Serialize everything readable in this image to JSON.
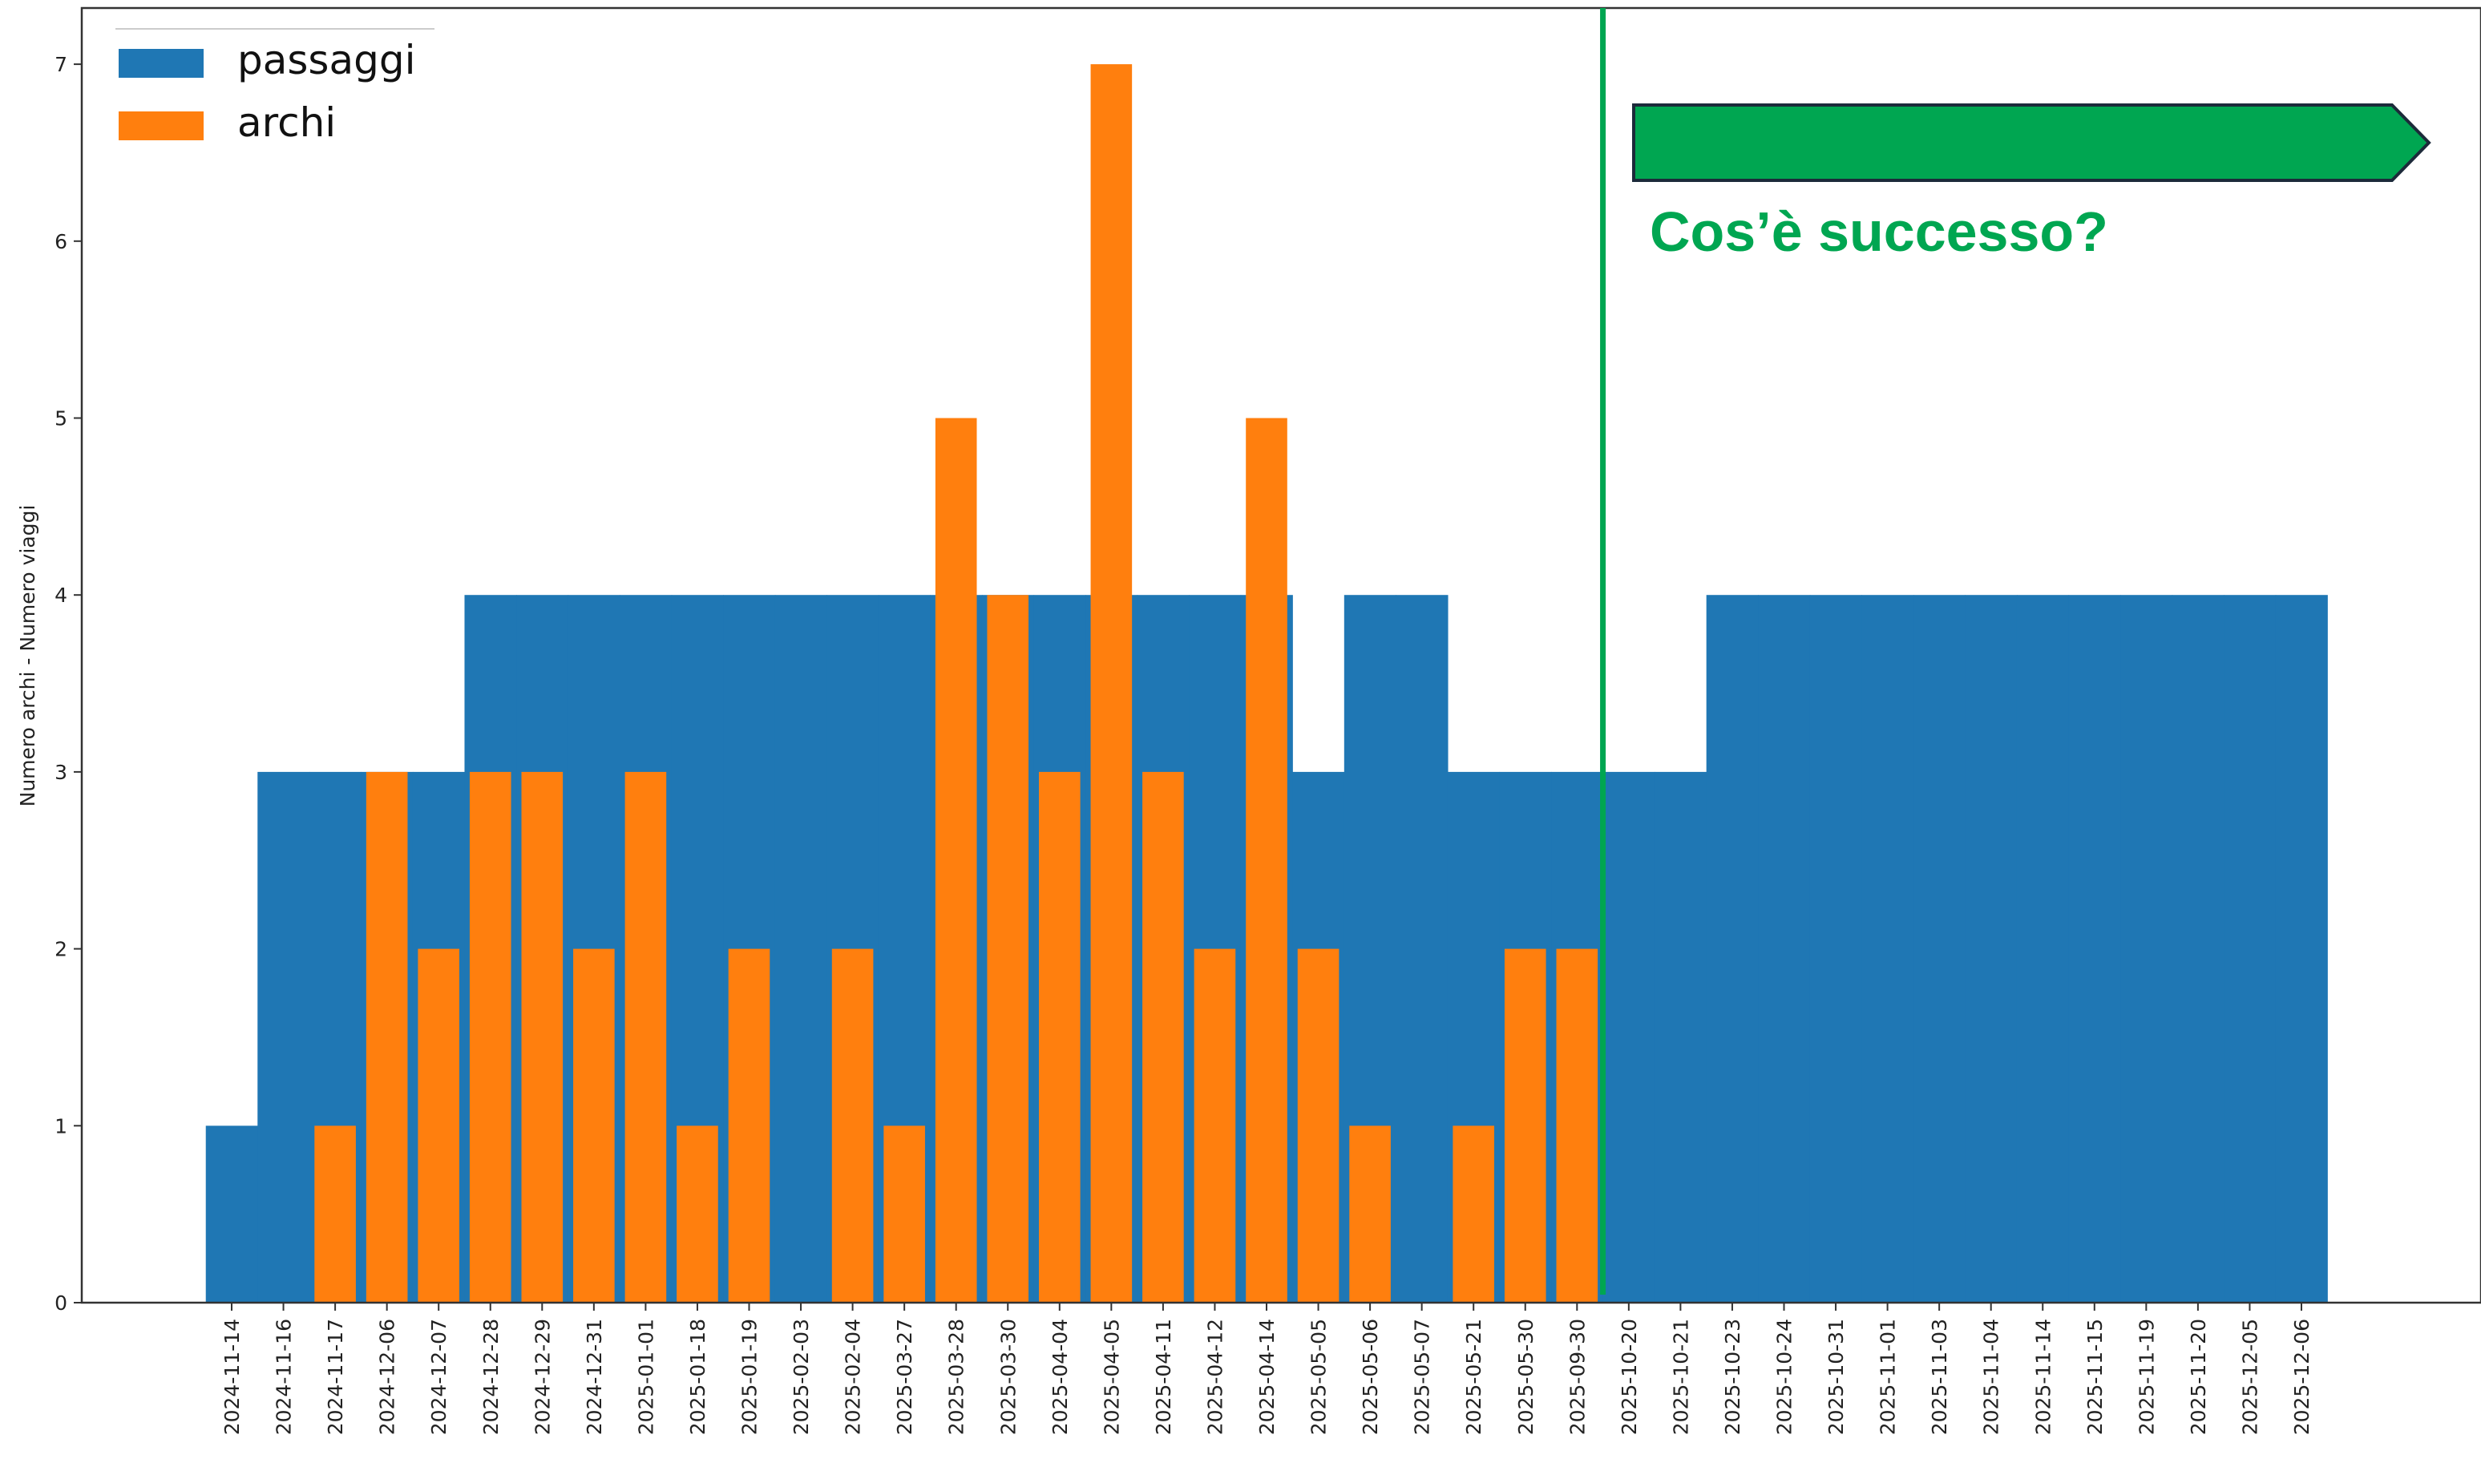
{
  "chart_data": {
    "type": "bar",
    "ylabel": "Numero archi - Numero viaggi",
    "xlabel": "",
    "ylim": [
      0,
      7.35
    ],
    "yticks": [
      0,
      1,
      2,
      3,
      4,
      5,
      6,
      7
    ],
    "grid": false,
    "legend_position": "top-left",
    "categories": [
      "2024-11-14",
      "2024-11-16",
      "2024-11-17",
      "2024-12-06",
      "2024-12-07",
      "2024-12-28",
      "2024-12-29",
      "2024-12-31",
      "2025-01-01",
      "2025-01-18",
      "2025-01-19",
      "2025-02-03",
      "2025-02-04",
      "2025-03-27",
      "2025-03-28",
      "2025-03-30",
      "2025-04-04",
      "2025-04-05",
      "2025-04-11",
      "2025-04-12",
      "2025-04-14",
      "2025-05-05",
      "2025-05-06",
      "2025-05-07",
      "2025-05-21",
      "2025-05-30",
      "2025-09-30",
      "2025-10-20",
      "2025-10-21",
      "2025-10-23",
      "2025-10-24",
      "2025-10-31",
      "2025-11-01",
      "2025-11-03",
      "2025-11-04",
      "2025-11-14",
      "2025-11-15",
      "2025-11-19",
      "2025-11-20",
      "2025-12-05",
      "2025-12-06"
    ],
    "series": [
      {
        "name": "passaggi",
        "color": "#1f77b4",
        "values": [
          1,
          3,
          3,
          3,
          3,
          4,
          4,
          4,
          4,
          4,
          4,
          4,
          4,
          4,
          4,
          4,
          4,
          4,
          4,
          4,
          4,
          3,
          4,
          4,
          3,
          3,
          3,
          3,
          3,
          4,
          4,
          4,
          4,
          4,
          4,
          4,
          4,
          4,
          4,
          4,
          4
        ]
      },
      {
        "name": "archi",
        "color": "#ff7f0e",
        "values": [
          0,
          0,
          1,
          3,
          2,
          3,
          3,
          2,
          3,
          1,
          2,
          0,
          2,
          1,
          5,
          4,
          3,
          7,
          3,
          2,
          5,
          2,
          1,
          0,
          1,
          2,
          2,
          null,
          null,
          null,
          null,
          null,
          null,
          null,
          null,
          null,
          null,
          null,
          null,
          null,
          null
        ]
      }
    ],
    "annotation": {
      "text": "Cos’è successo?",
      "color": "#00a651",
      "divider_after_category": "2025-09-30"
    }
  }
}
